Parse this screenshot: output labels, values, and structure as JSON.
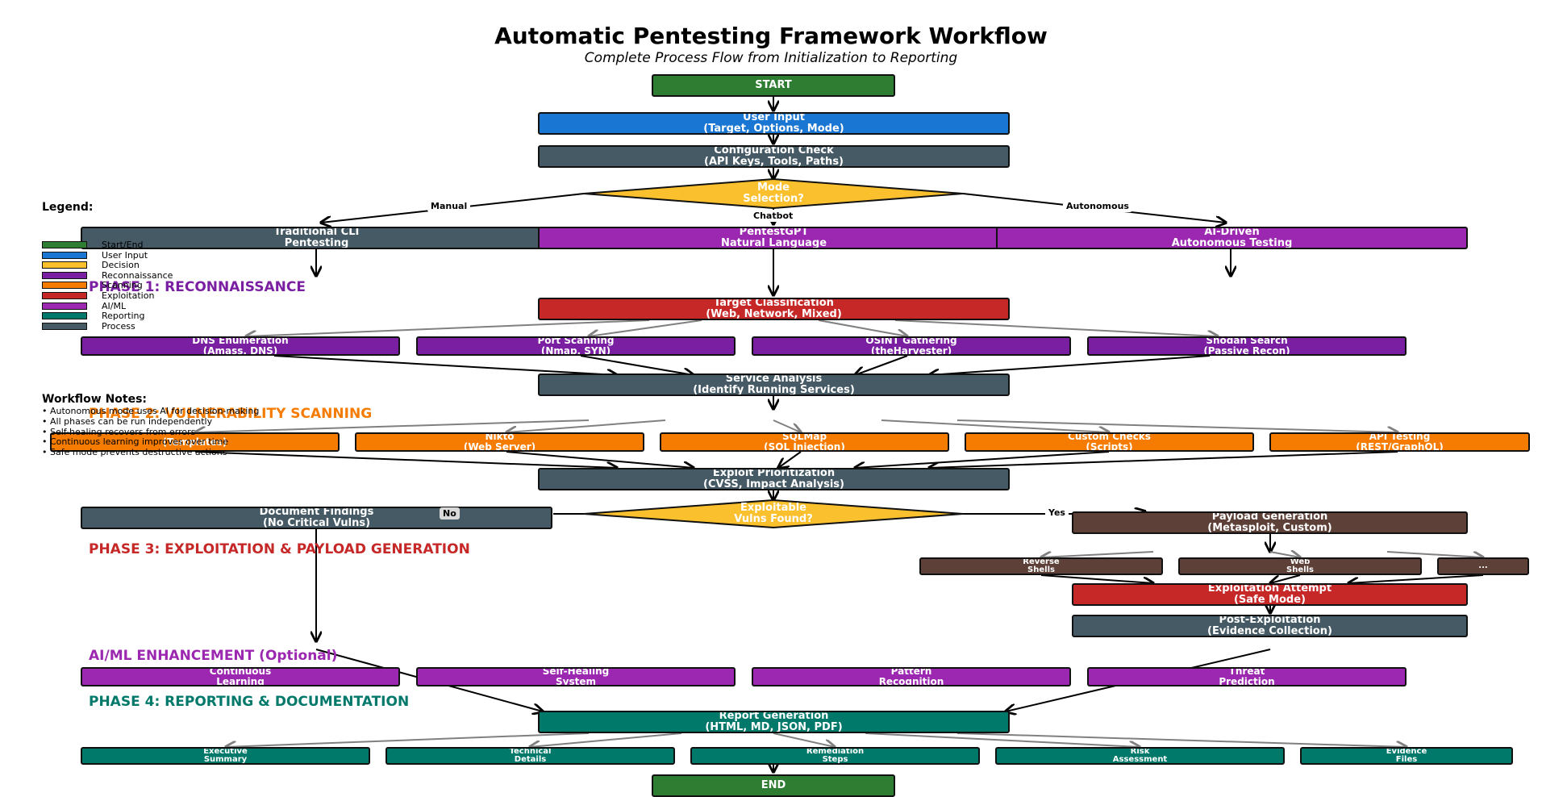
{
  "title": "Automatic Pentesting Framework Workflow",
  "subtitle": "Complete Process Flow from Initialization to Reporting",
  "colors": {
    "start_end": "#2e7d32",
    "user_input": "#1976d2",
    "decision": "#fbc02d",
    "recon": "#7b1fa2",
    "scanning": "#f57c00",
    "exploitation": "#c62828",
    "aiml": "#9c27b0",
    "reporting": "#00796b",
    "process": "#455a64",
    "payload": "#5d4037"
  },
  "nodes": {
    "start": {
      "line1": "START",
      "line2": ""
    },
    "user_input": {
      "line1": "User Input",
      "line2": "(Target, Options, Mode)"
    },
    "config_check": {
      "line1": "Configuration Check",
      "line2": "(API Keys, Tools, Paths)"
    },
    "mode_selection": {
      "line1": "Mode",
      "line2": "Selection?"
    },
    "traditional_cli": {
      "line1": "Traditional CLI",
      "line2": "Pentesting"
    },
    "pentestgpt": {
      "line1": "PentestGPT",
      "line2": "Natural Language"
    },
    "ai_driven": {
      "line1": "AI-Driven",
      "line2": "Autonomous Testing"
    },
    "target_classification": {
      "line1": "Target Classification",
      "line2": "(Web, Network, Mixed)"
    },
    "dns_enum": {
      "line1": "DNS Enumeration",
      "line2": "(Amass, DNS)"
    },
    "port_scan": {
      "line1": "Port Scanning",
      "line2": "(Nmap, SYN)"
    },
    "osint": {
      "line1": "OSINT Gathering",
      "line2": "(theHarvester)"
    },
    "shodan": {
      "line1": "Shodan Search",
      "line2": "(Passive Recon)"
    },
    "service_analysis": {
      "line1": "Service Analysis",
      "line2": "(Identify Running Services)"
    },
    "nuclei": {
      "line1": "",
      "line2": "(Templates)"
    },
    "nikto": {
      "line1": "Nikto",
      "line2": "(Web Server)"
    },
    "sqlmap": {
      "line1": "SQLMap",
      "line2": "(SQL Injection)"
    },
    "custom_checks": {
      "line1": "Custom Checks",
      "line2": "(Scripts)"
    },
    "api_testing": {
      "line1": "API Testing",
      "line2": "(REST/GraphQL)"
    },
    "exploit_prioritization": {
      "line1": "Exploit Prioritization",
      "line2": "(CVSS, Impact Analysis)"
    },
    "document_findings": {
      "line1": "Document Findings",
      "line2": "(No Critical Vulns)"
    },
    "exploitable": {
      "line1": "Exploitable",
      "line2": "Vulns Found?"
    },
    "payload_generation": {
      "line1": "Payload Generation",
      "line2": "(Metasploit, Custom)"
    },
    "reverse_shells": {
      "line1": "Reverse",
      "line2": "Shells"
    },
    "web_shells": {
      "line1": "Web",
      "line2": "Shells"
    },
    "more": {
      "line1": "...",
      "line2": ""
    },
    "exploitation_attempt": {
      "line1": "Exploitation Attempt",
      "line2": "(Safe Mode)"
    },
    "post_exploitation": {
      "line1": "Post-Exploitation",
      "line2": "(Evidence Collection)"
    },
    "continuous_learning": {
      "line1": "Continuous",
      "line2": "Learning"
    },
    "self_healing": {
      "line1": "Self-Healing",
      "line2": "System"
    },
    "pattern_recognition": {
      "line1": "Pattern",
      "line2": "Recognition"
    },
    "threat_prediction": {
      "line1": "Threat",
      "line2": "Prediction"
    },
    "report_generation": {
      "line1": "Report Generation",
      "line2": "(HTML, MD, JSON, PDF)"
    },
    "executive_summary": {
      "line1": "Executive",
      "line2": "Summary"
    },
    "technical_details": {
      "line1": "Technical",
      "line2": "Details"
    },
    "remediation_steps": {
      "line1": "Remediation",
      "line2": "Steps"
    },
    "risk_assessment": {
      "line1": "Risk",
      "line2": "Assessment"
    },
    "evidence_files": {
      "line1": "Evidence",
      "line2": "Files"
    },
    "end": {
      "line1": "END",
      "line2": ""
    }
  },
  "edge_labels": {
    "manual": "Manual",
    "chatbot": "Chatbot",
    "autonomous": "Autonomous",
    "no": "No",
    "yes": "Yes"
  },
  "phases": {
    "phase1": "PHASE 1: RECONNAISSANCE",
    "phase2": "PHASE 2: VULNERABILITY SCANNING",
    "phase3": "PHASE 3: EXPLOITATION & PAYLOAD GENERATION",
    "aiml": "AI/ML ENHANCEMENT (Optional)",
    "phase4": "PHASE 4: REPORTING & DOCUMENTATION"
  },
  "legend": {
    "title": "Legend:",
    "items": [
      {
        "label": "Start/End",
        "color": "#2e7d32"
      },
      {
        "label": "User Input",
        "color": "#1976d2"
      },
      {
        "label": "Decision",
        "color": "#fbc02d"
      },
      {
        "label": "Reconnaissance",
        "color": "#7b1fa2"
      },
      {
        "label": "Scanning",
        "color": "#f57c00"
      },
      {
        "label": "Exploitation",
        "color": "#c62828"
      },
      {
        "label": "AI/ML",
        "color": "#9c27b0"
      },
      {
        "label": "Reporting",
        "color": "#00796b"
      },
      {
        "label": "Process",
        "color": "#455a64"
      }
    ]
  },
  "notes": {
    "title": "Workflow Notes:",
    "items": [
      "• Autonomous mode uses AI for decision-making",
      "• All phases can be run independently",
      "• Self-healing recovers from errors",
      "• Continuous learning improves over time",
      "• Safe mode prevents destructive actions"
    ]
  }
}
